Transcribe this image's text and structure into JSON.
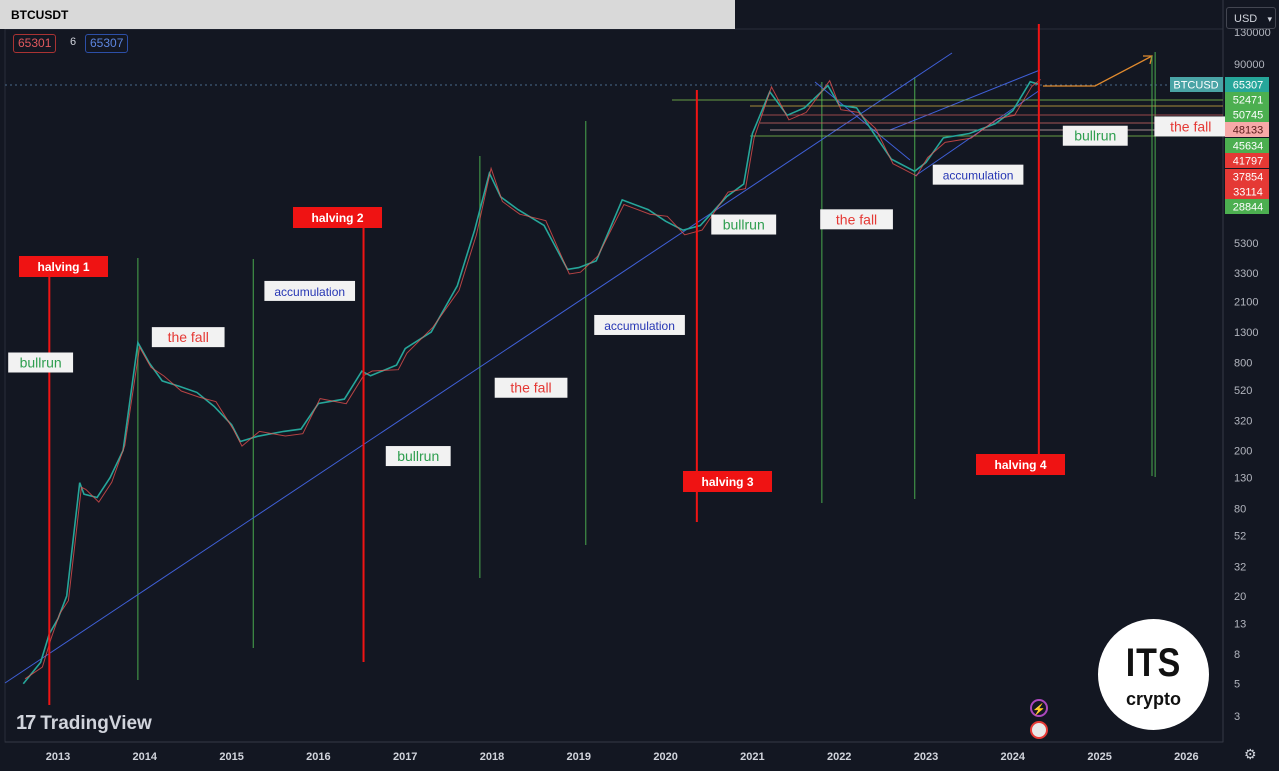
{
  "header": {
    "symbol": "BTCUSDT",
    "price_low": "65301",
    "interval": "6",
    "price_high": "65307"
  },
  "currency_select": "USD",
  "branding": {
    "tradingview": "TradingView",
    "its_top": "ITS",
    "its_bottom": "crypto"
  },
  "chart_data": {
    "type": "line",
    "x_ticks": [
      "2013",
      "2014",
      "2015",
      "2016",
      "2017",
      "2018",
      "2019",
      "2020",
      "2021",
      "2022",
      "2023",
      "2024",
      "2025",
      "2026"
    ],
    "y_ticks": [
      "130000",
      "90000",
      "5300",
      "3300",
      "2100",
      "1300",
      "800",
      "520",
      "320",
      "200",
      "130",
      "80",
      "52",
      "32",
      "20",
      "13",
      "8",
      "5",
      "3"
    ],
    "y_scale": "log",
    "price_labels": [
      {
        "text": "BTCUSD",
        "color": "#4aa4a6"
      },
      {
        "text": "65307",
        "color": "#26a69a"
      },
      {
        "text": "52471",
        "color": "#4caf50"
      },
      {
        "text": "50745",
        "color": "#4caf50"
      },
      {
        "text": "48133",
        "color": "#f7a9a8"
      },
      {
        "text": "45634",
        "color": "#4caf50"
      },
      {
        "text": "41797",
        "color": "#e53935"
      },
      {
        "text": "37854",
        "color": "#e53935"
      },
      {
        "text": "33114",
        "color": "#e53935"
      },
      {
        "text": "28844",
        "color": "#4caf50"
      }
    ],
    "halvings": [
      {
        "label": "halving 1",
        "year": 2012.9
      },
      {
        "label": "halving 2",
        "year": 2016.52
      },
      {
        "label": "halving 3",
        "year": 2020.36
      },
      {
        "label": "halving 4",
        "year": 2024.3
      }
    ],
    "annotations": [
      {
        "text": "bullrun",
        "color": "#2e9e4f",
        "year": 2012.8,
        "price": 790
      },
      {
        "text": "the fall",
        "color": "#e53935",
        "year": 2014.5,
        "price": 1180
      },
      {
        "text": "accumulation",
        "color": "#2636b4",
        "year": 2015.9,
        "price": 2450
      },
      {
        "text": "bullrun",
        "color": "#2e9e4f",
        "year": 2017.15,
        "price": 180
      },
      {
        "text": "the fall",
        "color": "#e53935",
        "year": 2018.45,
        "price": 530
      },
      {
        "text": "accumulation",
        "color": "#2636b4",
        "year": 2019.7,
        "price": 1430
      },
      {
        "text": "bullrun",
        "color": "#2e9e4f",
        "year": 2020.9,
        "price": 7000
      },
      {
        "text": "the fall",
        "color": "#e53935",
        "year": 2022.2,
        "price": 7600
      },
      {
        "text": "accumulation",
        "color": "#2636b4",
        "year": 2023.6,
        "price": 15400
      },
      {
        "text": "bullrun",
        "color": "#2e9e4f",
        "year": 2024.95,
        "price": 28500
      },
      {
        "text": "the fall",
        "color": "#e53935",
        "year": 2026.05,
        "price": 33000
      }
    ],
    "cycle_lines_years": [
      2013.92,
      2015.25,
      2017.86,
      2019.08,
      2021.8,
      2022.87,
      2025.64
    ],
    "series": [
      {
        "x": [
          2012.6,
          2012.8,
          2012.9,
          2013.0,
          2013.1,
          2013.25,
          2013.3,
          2013.45,
          2013.6,
          2013.75,
          2013.92,
          2014.05,
          2014.2,
          2014.4,
          2014.6,
          2014.8,
          2015.0,
          2015.1,
          2015.3,
          2015.6,
          2015.8,
          2016.0,
          2016.3,
          2016.5,
          2016.6,
          2016.9,
          2017.0,
          2017.3,
          2017.6,
          2017.8,
          2017.97,
          2018.1,
          2018.3,
          2018.6,
          2018.87,
          2019.0,
          2019.2,
          2019.5,
          2019.8,
          2020.0,
          2020.2,
          2020.4,
          2020.7,
          2020.9,
          2021.0,
          2021.2,
          2021.4,
          2021.6,
          2021.87,
          2022.0,
          2022.2,
          2022.4,
          2022.6,
          2022.87,
          2023.0,
          2023.2,
          2023.5,
          2023.8,
          2024.0,
          2024.2,
          2024.3
        ],
        "y": [
          5,
          7,
          11,
          14,
          20,
          120,
          100,
          95,
          130,
          200,
          1100,
          800,
          600,
          550,
          500,
          400,
          300,
          230,
          250,
          270,
          280,
          420,
          450,
          700,
          650,
          770,
          1000,
          1300,
          2700,
          6500,
          16000,
          11000,
          9000,
          7000,
          3500,
          3600,
          4000,
          10500,
          9000,
          7500,
          6500,
          7000,
          11000,
          13500,
          30000,
          58000,
          40000,
          45000,
          64000,
          47000,
          45000,
          30000,
          20000,
          16500,
          19000,
          28000,
          30000,
          35000,
          43000,
          68000,
          65307
        ]
      }
    ]
  }
}
